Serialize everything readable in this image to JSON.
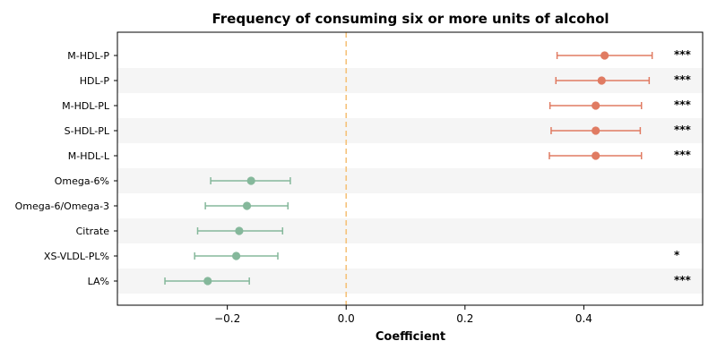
{
  "chart_data": {
    "type": "forest",
    "title": "Frequency of consuming six or more units of alcohol",
    "xlabel": "Coefficient",
    "ylabel": "",
    "xlim": [
      -0.385,
      0.6
    ],
    "xticks": [
      -0.2,
      0.0,
      0.2,
      0.4
    ],
    "xtick_labels": [
      "−0.2",
      "0.0",
      "0.2",
      "0.4"
    ],
    "reference_line": {
      "x": 0.0,
      "color": "#f5c27a",
      "style": "dashed"
    },
    "grid": false,
    "row_striping": true,
    "colors": {
      "positive": "#e07b62",
      "negative": "#85b89b",
      "stripe": "#f5f5f5"
    },
    "categories": [
      "M-HDL-P",
      "HDL-P",
      "M-HDL-PL",
      "S-HDL-PL",
      "M-HDL-L",
      "Omega-6%",
      "Omega-6/Omega-3",
      "Citrate",
      "XS-VLDL-PL%",
      "LA%"
    ],
    "estimates": [
      0.435,
      0.43,
      0.42,
      0.42,
      0.42,
      -0.16,
      -0.167,
      -0.18,
      -0.185,
      -0.233
    ],
    "ci_lower": [
      0.355,
      0.353,
      0.343,
      0.345,
      0.342,
      -0.228,
      -0.237,
      -0.25,
      -0.255,
      -0.305
    ],
    "ci_upper": [
      0.515,
      0.51,
      0.497,
      0.495,
      0.497,
      -0.094,
      -0.098,
      -0.107,
      -0.115,
      -0.163
    ],
    "significance": [
      "***",
      "***",
      "***",
      "***",
      "***",
      "",
      "",
      "",
      "*",
      "***"
    ]
  }
}
